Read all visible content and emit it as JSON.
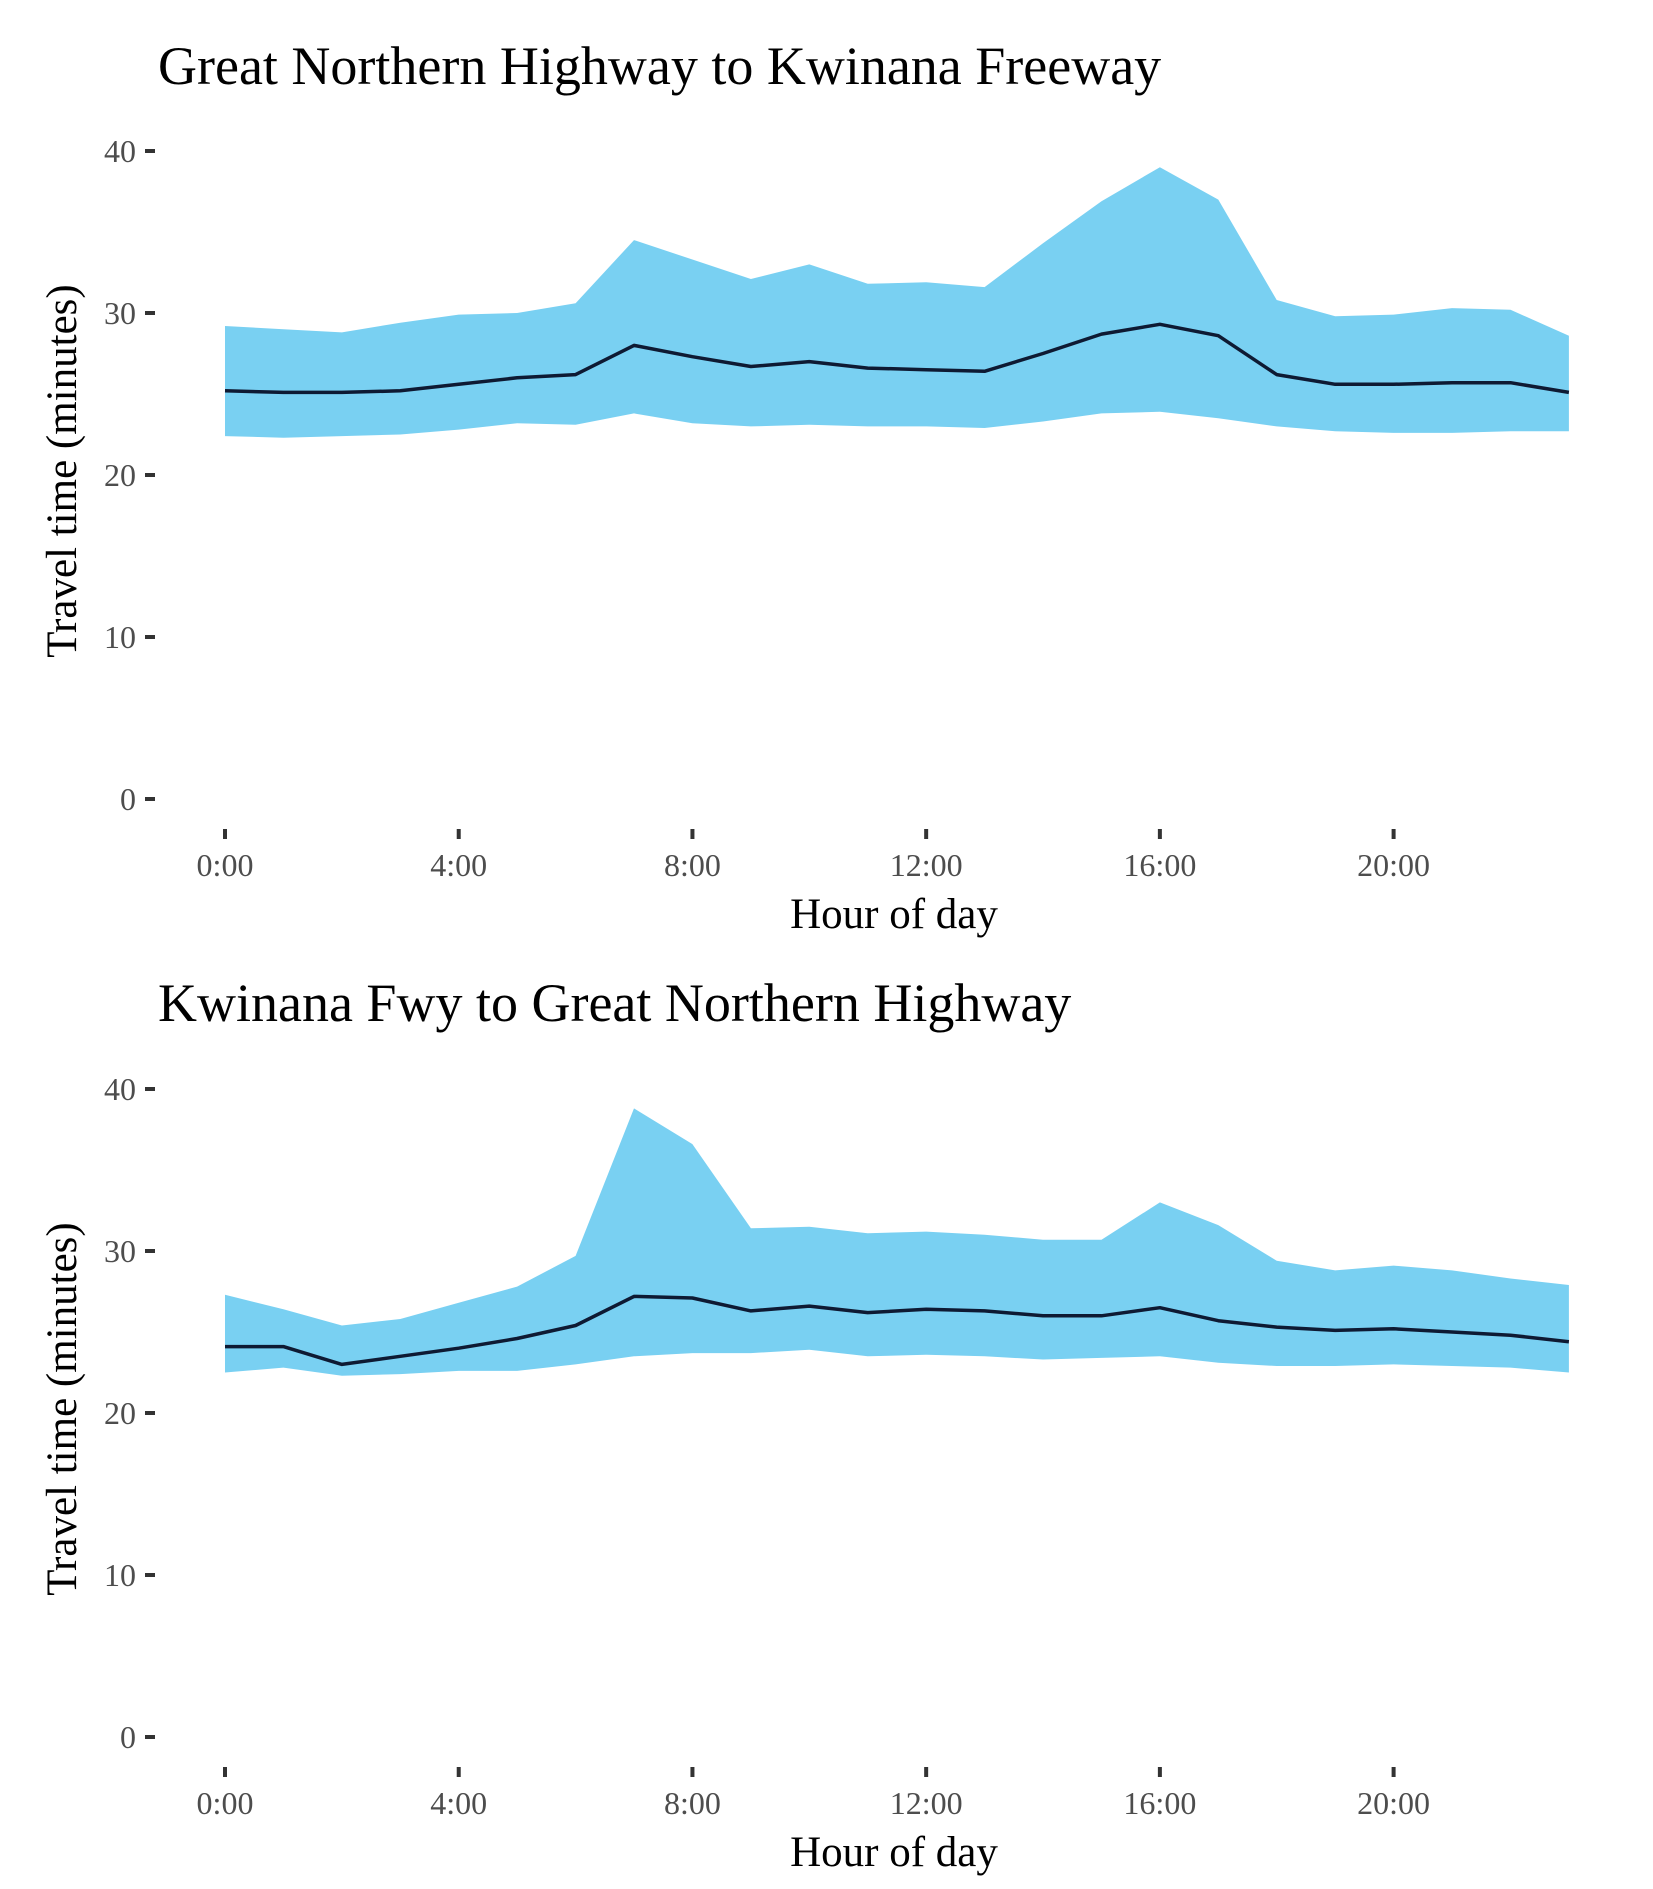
{
  "chart_data": [
    {
      "type": "area",
      "title": "Great Northern Highway to Kwinana Freeway",
      "xlabel": "Hour of day",
      "ylabel": "Travel time (minutes)",
      "x": [
        0,
        1,
        2,
        3,
        4,
        5,
        6,
        7,
        8,
        9,
        10,
        11,
        12,
        13,
        14,
        15,
        16,
        17,
        18,
        19,
        20,
        21,
        22,
        23
      ],
      "x_ticks": [
        "0:00",
        "4:00",
        "8:00",
        "12:00",
        "16:00",
        "20:00"
      ],
      "x_tick_values": [
        0,
        4,
        8,
        12,
        16,
        20
      ],
      "y_ticks": [
        0,
        10,
        20,
        30,
        40
      ],
      "ylim": [
        0,
        40
      ],
      "grid": false,
      "band_color": "#79d0f2",
      "line_color": "#0e1a33",
      "series": [
        {
          "kind": "band-lower",
          "values": [
            22.4,
            22.3,
            22.4,
            22.5,
            22.8,
            23.2,
            23.1,
            23.8,
            23.2,
            23.0,
            23.1,
            23.0,
            23.0,
            22.9,
            23.3,
            23.8,
            23.9,
            23.5,
            23.0,
            22.7,
            22.6,
            22.6,
            22.7,
            22.7
          ]
        },
        {
          "kind": "band-upper",
          "values": [
            29.2,
            29.0,
            28.8,
            29.4,
            29.9,
            30.0,
            30.6,
            34.5,
            33.3,
            32.1,
            33.0,
            31.8,
            31.9,
            31.6,
            34.3,
            36.9,
            39.0,
            37.0,
            30.8,
            29.8,
            29.9,
            30.3,
            30.2,
            28.6
          ]
        },
        {
          "kind": "line",
          "values": [
            25.2,
            25.1,
            25.1,
            25.2,
            25.6,
            26.0,
            26.2,
            28.0,
            27.3,
            26.7,
            27.0,
            26.6,
            26.5,
            26.4,
            27.5,
            28.7,
            29.3,
            28.6,
            26.2,
            25.6,
            25.6,
            25.7,
            25.7,
            25.1
          ]
        }
      ]
    },
    {
      "type": "area",
      "title": "Kwinana Fwy to Great Northern Highway",
      "xlabel": "Hour of day",
      "ylabel": "Travel time (minutes)",
      "x": [
        0,
        1,
        2,
        3,
        4,
        5,
        6,
        7,
        8,
        9,
        10,
        11,
        12,
        13,
        14,
        15,
        16,
        17,
        18,
        19,
        20,
        21,
        22,
        23
      ],
      "x_ticks": [
        "0:00",
        "4:00",
        "8:00",
        "12:00",
        "16:00",
        "20:00"
      ],
      "x_tick_values": [
        0,
        4,
        8,
        12,
        16,
        20
      ],
      "y_ticks": [
        0,
        10,
        20,
        30,
        40
      ],
      "ylim": [
        0,
        40
      ],
      "grid": false,
      "band_color": "#79d0f2",
      "line_color": "#0e1a33",
      "series": [
        {
          "kind": "band-lower",
          "values": [
            22.5,
            22.8,
            22.3,
            22.4,
            22.6,
            22.6,
            23.0,
            23.5,
            23.7,
            23.7,
            23.9,
            23.5,
            23.6,
            23.5,
            23.3,
            23.4,
            23.5,
            23.1,
            22.9,
            22.9,
            23.0,
            22.9,
            22.8,
            22.5
          ]
        },
        {
          "kind": "band-upper",
          "values": [
            27.3,
            26.4,
            25.4,
            25.8,
            26.8,
            27.8,
            29.7,
            38.8,
            36.6,
            31.4,
            31.5,
            31.1,
            31.2,
            31.0,
            30.7,
            30.7,
            33.0,
            31.6,
            29.4,
            28.8,
            29.1,
            28.8,
            28.3,
            27.9
          ]
        },
        {
          "kind": "line",
          "values": [
            24.1,
            24.1,
            23.0,
            23.5,
            24.0,
            24.6,
            25.4,
            27.2,
            27.1,
            26.3,
            26.6,
            26.2,
            26.4,
            26.3,
            26.0,
            26.0,
            26.5,
            25.7,
            25.3,
            25.1,
            25.2,
            25.0,
            24.8,
            24.4
          ]
        }
      ]
    }
  ]
}
